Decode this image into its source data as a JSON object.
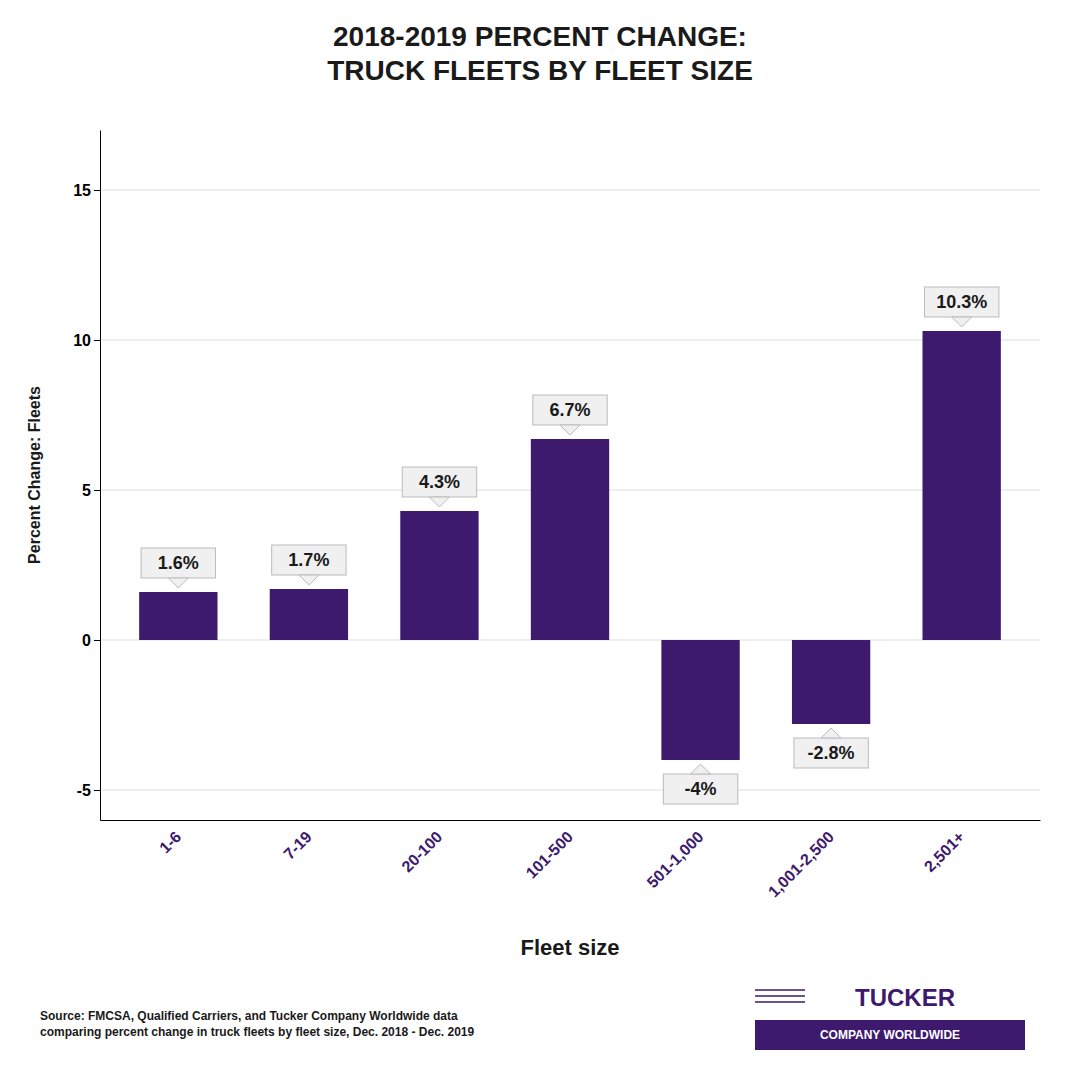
{
  "chart_data": {
    "type": "bar",
    "title": "2018-2019 PERCENT CHANGE:\nTRUCK FLEETS BY FLEET SIZE",
    "categories": [
      "1-6",
      "7-19",
      "20-100",
      "101-500",
      "501-1,000",
      "1,001-2,500",
      "2,501+"
    ],
    "values": [
      1.6,
      1.7,
      4.3,
      6.7,
      -4.0,
      -2.8,
      10.3
    ],
    "value_labels": [
      "1.6%",
      "1.7%",
      "4.3%",
      "6.7%",
      "-4%",
      "-2.8%",
      "10.3%"
    ],
    "data_labels": true,
    "color": "#3d1a6e",
    "xlabel": "Fleet size",
    "ylabel": "Percent Change: Fleets",
    "ylim": [
      -6,
      17
    ],
    "yticks": [
      -5,
      0,
      5,
      10,
      15
    ],
    "grid": true,
    "annotations": [
      "Source: FMCSA, Qualified Carriers, and Tucker Company Worldwide data\ncomparing percent change in truck fleets by fleet size, Dec. 2018 - Dec. 2019",
      "TUCKER",
      "COMPANY WORLDWIDE"
    ]
  }
}
